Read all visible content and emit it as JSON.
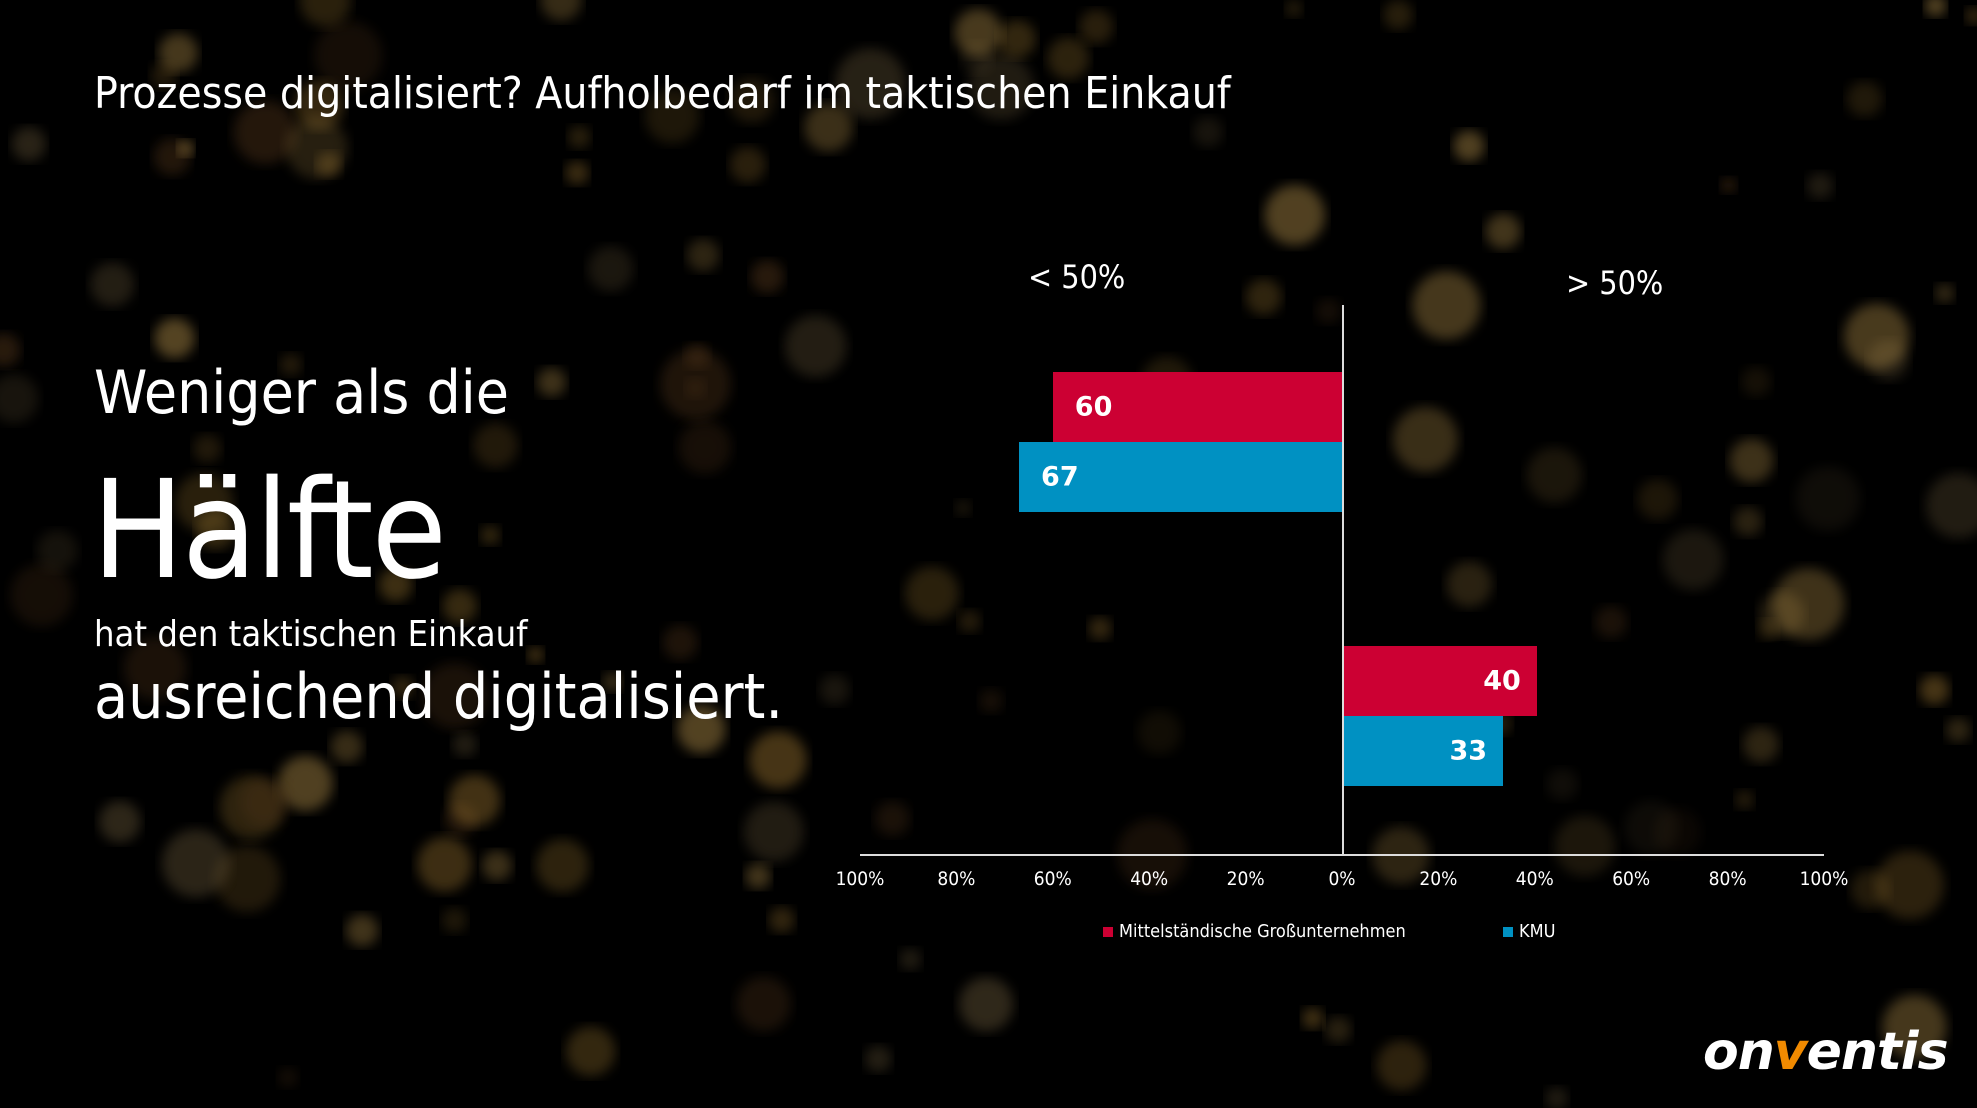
{
  "title": "Prozesse digitalisiert? Aufholbedarf im taktischen Einkauf",
  "headline": {
    "line1": "Weniger als die",
    "line2": "Hälfte",
    "line3": "hat den taktischen Einkauf",
    "line4": "ausreichend digitalisiert."
  },
  "logo": {
    "pre": "on",
    "accent": "v",
    "post": "entis",
    "accent_color": "#f08a00"
  },
  "chart_data": {
    "type": "bar",
    "orientation": "horizontal-diverging",
    "categories": [
      "< 50%",
      "> 50%"
    ],
    "category_sides": [
      "left",
      "right"
    ],
    "series": [
      {
        "name": "Mittelständische Großunternehmen",
        "color": "#cc0033",
        "values": [
          60,
          40
        ]
      },
      {
        "name": "KMU",
        "color": "#0091c2",
        "values": [
          67,
          33
        ]
      }
    ],
    "x_ticks": [
      "100%",
      "80%",
      "60%",
      "40%",
      "20%",
      "0%",
      "20%",
      "40%",
      "60%",
      "80%",
      "100%"
    ],
    "xlim": [
      -100,
      100
    ],
    "legend_position": "bottom",
    "grid": false
  }
}
